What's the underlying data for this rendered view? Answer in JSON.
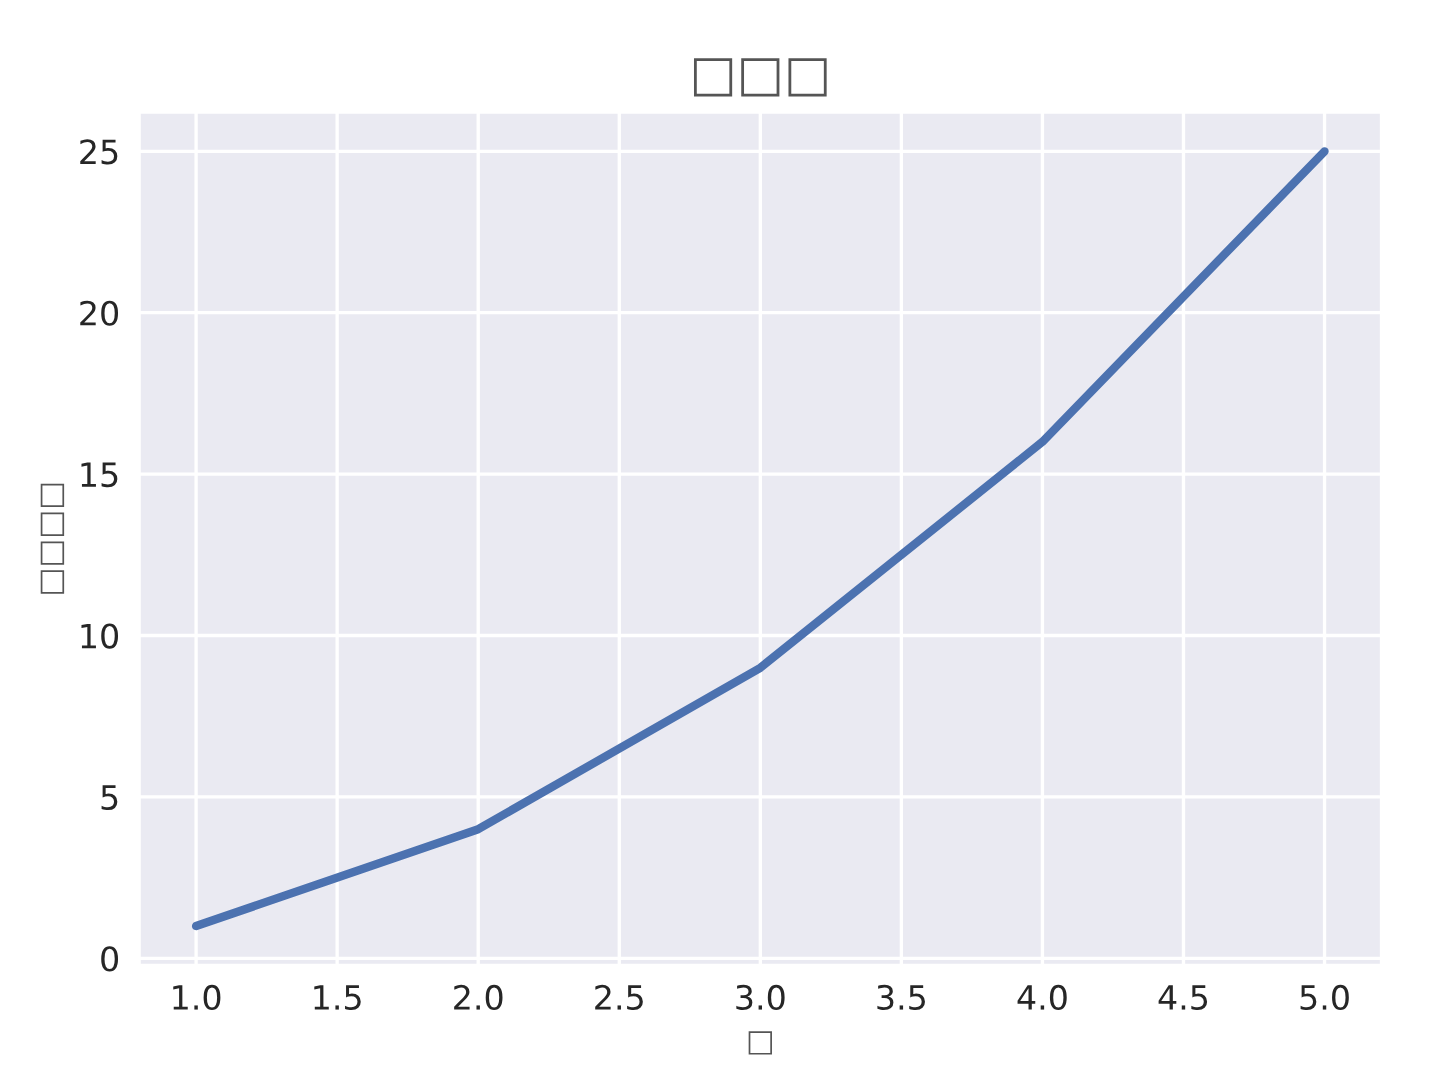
{
  "chart_data": {
    "type": "line",
    "title": "□□□",
    "xlabel": "□",
    "ylabel": "□□□□",
    "x": [
      1,
      2,
      3,
      4,
      5
    ],
    "series": [
      {
        "color": "#4c72b0",
        "values": [
          1,
          4,
          9,
          16,
          25
        ]
      }
    ],
    "xlim": [
      0.8,
      5.2
    ],
    "ylim": [
      -0.2,
      26.2
    ],
    "xticks": [
      {
        "value": 1,
        "label": "1.0"
      },
      {
        "value": 1.5,
        "label": "1.5"
      },
      {
        "value": 2,
        "label": "2.0"
      },
      {
        "value": 2.5,
        "label": "2.5"
      },
      {
        "value": 3,
        "label": "3.0"
      },
      {
        "value": 3.5,
        "label": "3.5"
      },
      {
        "value": 4,
        "label": "4.0"
      },
      {
        "value": 4.5,
        "label": "4.5"
      },
      {
        "value": 5,
        "label": "5.0"
      }
    ],
    "yticks": [
      0,
      5,
      10,
      15,
      20,
      25
    ],
    "grid": true
  }
}
